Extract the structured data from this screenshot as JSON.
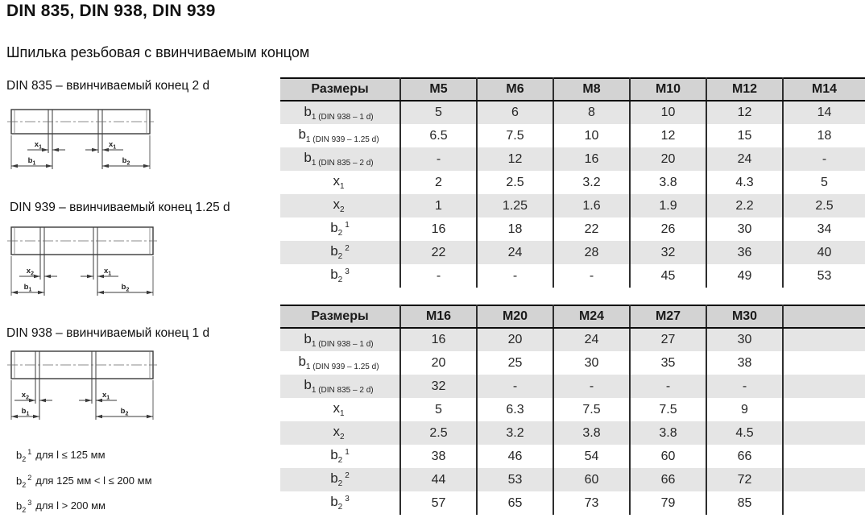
{
  "page": {
    "title": "DIN 835, DIN 938, DIN 939",
    "subtitle": "Шпилька резьбовая с ввинчиваемым концом"
  },
  "diagrams": [
    {
      "caption": "DIN 835 – ввинчиваемый конец 2 d",
      "labels": {
        "left_base": "x",
        "left_sub": "1",
        "right_base": "x",
        "right_sub": "1",
        "b_left_base": "b",
        "b_left_sub": "1",
        "b_right_base": "b",
        "b_right_sub": "2"
      }
    },
    {
      "caption": "DIN 939 – ввинчиваемый конец 1.25 d",
      "labels": {
        "left_base": "x",
        "left_sub": "2",
        "right_base": "x",
        "right_sub": "1",
        "b_left_base": "b",
        "b_left_sub": "1",
        "b_right_base": "b",
        "b_right_sub": "2"
      }
    },
    {
      "caption": "DIN 938 – ввинчиваемый конец 1 d",
      "labels": {
        "left_base": "x",
        "left_sub": "2",
        "right_base": "x",
        "right_sub": "1",
        "b_left_base": "b",
        "b_left_sub": "1",
        "b_right_base": "b",
        "b_right_sub": "2"
      }
    }
  ],
  "footnotes": [
    {
      "base": "b",
      "sub": "2",
      "sup": "1",
      "text": "для l ≤ 125 мм"
    },
    {
      "base": "b",
      "sub": "2",
      "sup": "2",
      "text": "для 125 мм < l ≤ 200 мм"
    },
    {
      "base": "b",
      "sub": "2",
      "sup": "3",
      "text": "для l > 200 мм"
    }
  ],
  "tables": [
    {
      "header_label": "Размеры",
      "columns": [
        "M5",
        "M6",
        "M8",
        "M10",
        "M12",
        "M14"
      ],
      "rows": [
        {
          "label": {
            "base": "b",
            "sub": "1 (DIN 938 – 1 d)",
            "sup": ""
          },
          "values": [
            "5",
            "6",
            "8",
            "10",
            "12",
            "14"
          ]
        },
        {
          "label": {
            "base": "b",
            "sub": "1 (DIN 939 – 1.25 d)",
            "sup": ""
          },
          "values": [
            "6.5",
            "7.5",
            "10",
            "12",
            "15",
            "18"
          ]
        },
        {
          "label": {
            "base": "b",
            "sub": "1 (DIN 835 – 2 d)",
            "sup": ""
          },
          "values": [
            "-",
            "12",
            "16",
            "20",
            "24",
            "-"
          ]
        },
        {
          "label": {
            "base": "x",
            "sub": "1",
            "sup": ""
          },
          "values": [
            "2",
            "2.5",
            "3.2",
            "3.8",
            "4.3",
            "5"
          ]
        },
        {
          "label": {
            "base": "x",
            "sub": "2",
            "sup": ""
          },
          "values": [
            "1",
            "1.25",
            "1.6",
            "1.9",
            "2.2",
            "2.5"
          ]
        },
        {
          "label": {
            "base": "b",
            "sub": "2",
            "sup": "1"
          },
          "values": [
            "16",
            "18",
            "22",
            "26",
            "30",
            "34"
          ]
        },
        {
          "label": {
            "base": "b",
            "sub": "2",
            "sup": "2"
          },
          "values": [
            "22",
            "24",
            "28",
            "32",
            "36",
            "40"
          ]
        },
        {
          "label": {
            "base": "b",
            "sub": "2",
            "sup": "3"
          },
          "values": [
            "-",
            "-",
            "-",
            "45",
            "49",
            "53"
          ]
        }
      ]
    },
    {
      "header_label": "Размеры",
      "columns": [
        "M16",
        "M20",
        "M24",
        "M27",
        "M30",
        ""
      ],
      "rows": [
        {
          "label": {
            "base": "b",
            "sub": "1 (DIN 938 – 1 d)",
            "sup": ""
          },
          "values": [
            "16",
            "20",
            "24",
            "27",
            "30",
            ""
          ]
        },
        {
          "label": {
            "base": "b",
            "sub": "1 (DIN 939 – 1.25 d)",
            "sup": ""
          },
          "values": [
            "20",
            "25",
            "30",
            "35",
            "38",
            ""
          ]
        },
        {
          "label": {
            "base": "b",
            "sub": "1 (DIN 835 – 2 d)",
            "sup": ""
          },
          "values": [
            "32",
            "-",
            "-",
            "-",
            "-",
            ""
          ]
        },
        {
          "label": {
            "base": "x",
            "sub": "1",
            "sup": ""
          },
          "values": [
            "5",
            "6.3",
            "7.5",
            "7.5",
            "9",
            ""
          ]
        },
        {
          "label": {
            "base": "x",
            "sub": "2",
            "sup": ""
          },
          "values": [
            "2.5",
            "3.2",
            "3.8",
            "3.8",
            "4.5",
            ""
          ]
        },
        {
          "label": {
            "base": "b",
            "sub": "2",
            "sup": "1"
          },
          "values": [
            "38",
            "46",
            "54",
            "60",
            "66",
            ""
          ]
        },
        {
          "label": {
            "base": "b",
            "sub": "2",
            "sup": "2"
          },
          "values": [
            "44",
            "53",
            "60",
            "66",
            "72",
            ""
          ]
        },
        {
          "label": {
            "base": "b",
            "sub": "2",
            "sup": "3"
          },
          "values": [
            "57",
            "65",
            "73",
            "79",
            "85",
            ""
          ]
        }
      ]
    }
  ],
  "colors": {
    "header_bg": "#d3d3d3",
    "stripe_bg": "#e5e5e5",
    "border": "#0d0d0d",
    "text": "#262626"
  }
}
